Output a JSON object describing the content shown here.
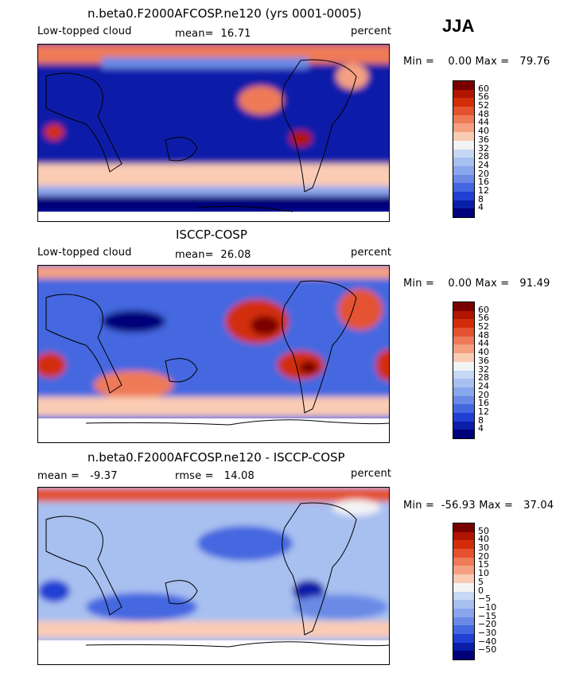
{
  "season": "JJA",
  "panels": [
    {
      "title": "n.beta0.F2000AFCOSP.ne120 (yrs 0001-0005)",
      "left_label": "Low-topped cloud",
      "mean_label": "mean=  16.71",
      "right_label": "percent",
      "minmax_label": "Min =    0.00 Max =   79.76"
    },
    {
      "title": "ISCCP-COSP",
      "left_label": "Low-topped cloud",
      "mean_label": "mean=  26.08",
      "right_label": "percent",
      "minmax_label": "Min =    0.00 Max =   91.49"
    },
    {
      "title": "n.beta0.F2000AFCOSP.ne120 - ISCCP-COSP",
      "left_label": "mean =   -9.37",
      "mean_label": "rmse =   14.08",
      "right_label": "percent",
      "minmax_label": "Min =  -56.93 Max =   37.04"
    }
  ],
  "chart_data": [
    {
      "type": "heatmap",
      "title": "n.beta0.F2000AFCOSP.ne120 (yrs 0001-0005)",
      "variable": "Low-topped cloud",
      "units": "percent",
      "mean": 16.71,
      "min": 0.0,
      "max": 79.76,
      "levels": [
        "60",
        "56",
        "52",
        "48",
        "44",
        "40",
        "36",
        "32",
        "28",
        "24",
        "20",
        "16",
        "12",
        "8",
        "4"
      ],
      "colors": [
        "#7a0000",
        "#b01500",
        "#d22d08",
        "#e45230",
        "#ee7a58",
        "#f5a080",
        "#fbccb4",
        "#f3f3f5",
        "#c6d8f4",
        "#a8c0f0",
        "#8aa6ec",
        "#6b8ae6",
        "#4468e0",
        "#2040d4",
        "#0a1ea8",
        "#00007a"
      ]
    },
    {
      "type": "heatmap",
      "title": "ISCCP-COSP",
      "variable": "Low-topped cloud",
      "units": "percent",
      "mean": 26.08,
      "min": 0.0,
      "max": 91.49,
      "levels": [
        "60",
        "56",
        "52",
        "48",
        "44",
        "40",
        "36",
        "32",
        "28",
        "24",
        "20",
        "16",
        "12",
        "8",
        "4"
      ],
      "colors": [
        "#7a0000",
        "#b01500",
        "#d22d08",
        "#e45230",
        "#ee7a58",
        "#f5a080",
        "#fbccb4",
        "#f3f3f5",
        "#c6d8f4",
        "#a8c0f0",
        "#8aa6ec",
        "#6b8ae6",
        "#4468e0",
        "#2040d4",
        "#0a1ea8",
        "#00007a"
      ]
    },
    {
      "type": "heatmap",
      "title": "n.beta0.F2000AFCOSP.ne120 - ISCCP-COSP",
      "units": "percent",
      "mean": -9.37,
      "rmse": 14.08,
      "min": -56.93,
      "max": 37.04,
      "levels": [
        "50",
        "40",
        "30",
        "20",
        "15",
        "10",
        "5",
        "0",
        "−5",
        "−10",
        "−15",
        "−20",
        "−30",
        "−40",
        "−50"
      ],
      "colors": [
        "#7a0000",
        "#b01500",
        "#d22d08",
        "#e45230",
        "#ee7a58",
        "#f5a080",
        "#fbccb4",
        "#f3f3f5",
        "#c6d8f4",
        "#a8c0f0",
        "#8aa6ec",
        "#6b8ae6",
        "#4468e0",
        "#2040d4",
        "#0a1ea8",
        "#00007a"
      ]
    }
  ]
}
